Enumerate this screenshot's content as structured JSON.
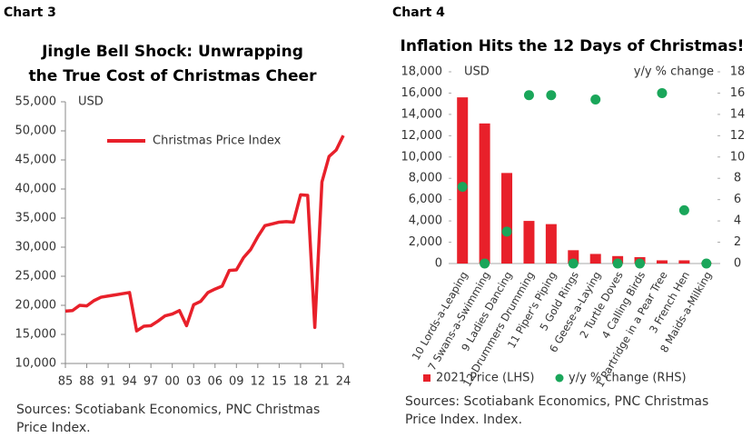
{
  "chart_data": [
    {
      "type": "line",
      "label": "Chart 3",
      "title": "Jingle Bell Shock: Unwrapping the True Cost of Christmas Cheer",
      "y_label": "USD",
      "source": "Sources: Scotiabank Economics, PNC Christmas Price Index.",
      "x": [
        1985,
        1986,
        1987,
        1988,
        1989,
        1990,
        1991,
        1992,
        1993,
        1994,
        1995,
        1996,
        1997,
        1998,
        1999,
        2000,
        2001,
        2002,
        2003,
        2004,
        2005,
        2006,
        2007,
        2008,
        2009,
        2010,
        2011,
        2012,
        2013,
        2014,
        2015,
        2016,
        2017,
        2018,
        2019,
        2020,
        2021,
        2022,
        2023,
        2024
      ],
      "series": [
        {
          "name": "Christmas Price Index",
          "color": "#e8202a",
          "values": [
            19000,
            19100,
            20000,
            19900,
            20800,
            21400,
            21600,
            21800,
            22000,
            22200,
            15600,
            16400,
            16500,
            17300,
            18200,
            18500,
            19100,
            16500,
            20100,
            20700,
            22200,
            22800,
            23300,
            26000,
            26100,
            28200,
            29600,
            31800,
            33700,
            34000,
            34300,
            34400,
            34300,
            39000,
            38900,
            16200,
            41200,
            45600,
            46700,
            49200
          ]
        }
      ],
      "xlim": [
        1985,
        2024
      ],
      "xticks": [
        {
          "value": 1985,
          "label": "85"
        },
        {
          "value": 1988,
          "label": "88"
        },
        {
          "value": 1991,
          "label": "91"
        },
        {
          "value": 1994,
          "label": "94"
        },
        {
          "value": 1997,
          "label": "97"
        },
        {
          "value": 2000,
          "label": "00"
        },
        {
          "value": 2003,
          "label": "03"
        },
        {
          "value": 2006,
          "label": "06"
        },
        {
          "value": 2009,
          "label": "09"
        },
        {
          "value": 2012,
          "label": "12"
        },
        {
          "value": 2015,
          "label": "15"
        },
        {
          "value": 2018,
          "label": "18"
        },
        {
          "value": 2021,
          "label": "21"
        },
        {
          "value": 2024,
          "label": "24"
        }
      ],
      "ylim": [
        10000,
        55000
      ],
      "yticks": [
        {
          "value": 10000,
          "label": "10,000"
        },
        {
          "value": 15000,
          "label": "15,000"
        },
        {
          "value": 20000,
          "label": "20,000"
        },
        {
          "value": 25000,
          "label": "25,000"
        },
        {
          "value": 30000,
          "label": "30,000"
        },
        {
          "value": 35000,
          "label": "35,000"
        },
        {
          "value": 40000,
          "label": "40,000"
        },
        {
          "value": 45000,
          "label": "45,000"
        },
        {
          "value": 50000,
          "label": "50,000"
        },
        {
          "value": 55000,
          "label": "55,000"
        }
      ]
    },
    {
      "type": "bar_scatter",
      "label": "Chart 4",
      "title": "Inflation Hits the 12 Days of Christmas!",
      "y_label": "USD",
      "y2_label": "y/y % change",
      "source": "Sources: Scotiabank Economics, PNC Christmas Price Index. Index.",
      "categories": [
        "10 Lords-a-Leaping",
        "7 Swans-a-Swimming",
        "9 Ladies Dancing",
        "12 Drummers Drumming",
        "11 Piper's Piping",
        "5 Gold Rings",
        "6 Geese-a-Laying",
        "2 Turtle Doves",
        "4 Calling Birds",
        "1 Partridge in a Pear Tree",
        "3 French Hen",
        "8 Maids-a-Milking"
      ],
      "series": [
        {
          "name": "2021 Price (LHS)",
          "color": "#e8202a",
          "values": [
            15600,
            13150,
            8500,
            4000,
            3700,
            1250,
            900,
            700,
            600,
            300,
            300,
            58
          ]
        },
        {
          "name": "y/y % change (RHS)",
          "color": "#1aa65a",
          "axis": "y2",
          "values": [
            7.2,
            0,
            3,
            15.8,
            15.8,
            0,
            15.4,
            0,
            0,
            16,
            5,
            0
          ]
        }
      ],
      "ylim": [
        0,
        18000
      ],
      "yticks": [
        0,
        {
          "value": 2000,
          "label": "2,000"
        },
        {
          "value": 4000,
          "label": "4,000"
        },
        {
          "value": 6000,
          "label": "6,000"
        },
        {
          "value": 8000,
          "label": "8,000"
        },
        {
          "value": 10000,
          "label": "10,000"
        },
        {
          "value": 12000,
          "label": "12,000"
        },
        {
          "value": 14000,
          "label": "14,000"
        },
        {
          "value": 16000,
          "label": "16,000"
        },
        {
          "value": 18000,
          "label": "18,000"
        }
      ],
      "y2lim": [
        0,
        18
      ],
      "y2ticks": [
        0,
        2,
        4,
        6,
        8,
        10,
        12,
        14,
        16,
        18
      ]
    }
  ]
}
